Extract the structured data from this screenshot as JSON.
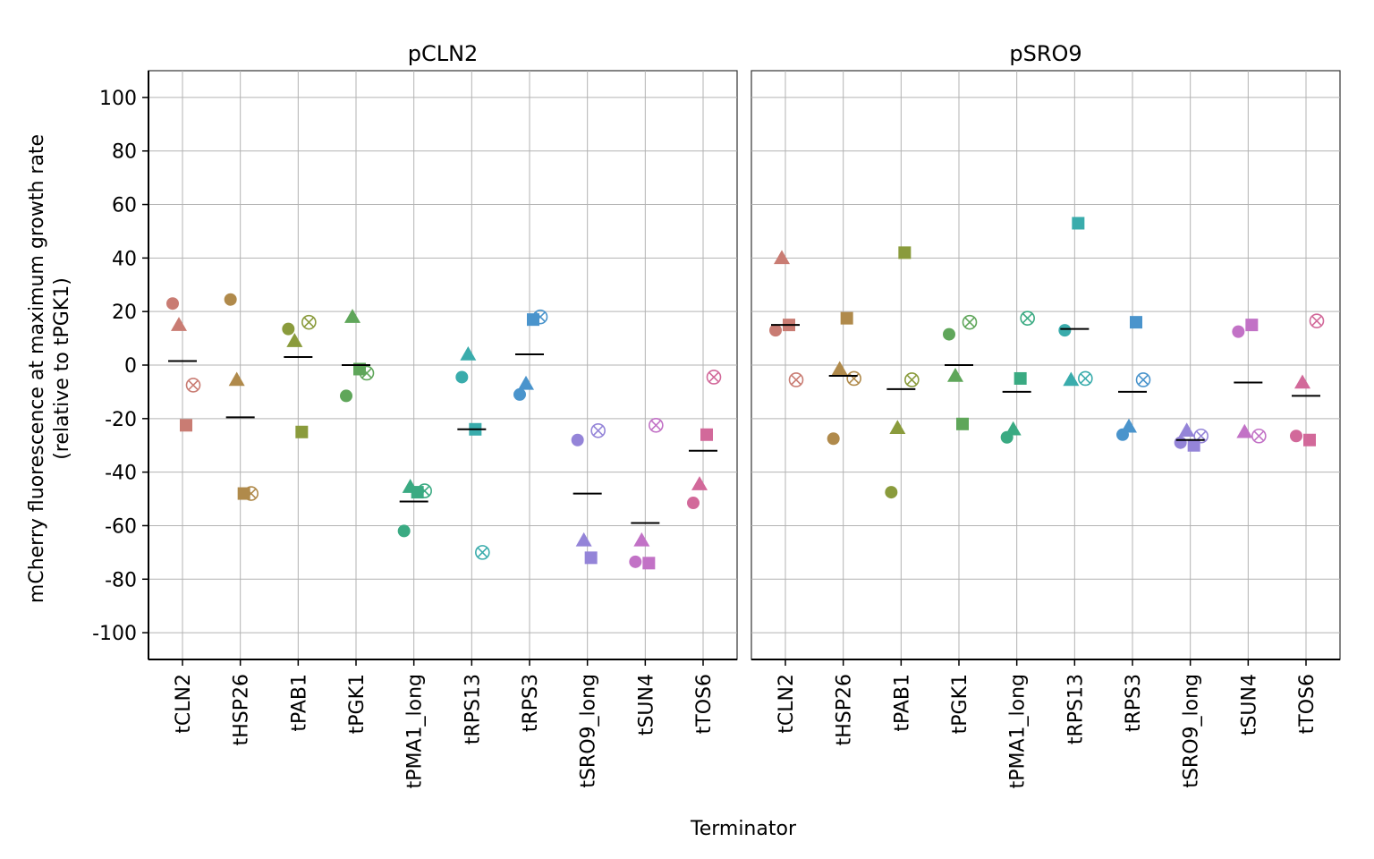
{
  "chart_data": {
    "type": "scatter",
    "xlabel": "Terminator",
    "ylabel_line1": "mCherry fluorescence at maximum growth rate",
    "ylabel_line2": "(relative to tPGK1)",
    "ylim": [
      -110,
      110
    ],
    "yticks": [
      100,
      80,
      60,
      40,
      20,
      0,
      -20,
      -40,
      -60,
      -80,
      -100
    ],
    "grid": true,
    "legend": "none",
    "categories": [
      "tCLN2",
      "tHSP26",
      "tPAB1",
      "tPGK1",
      "tPMA1_long",
      "tRPS13",
      "tRPS3",
      "tSRO9_long",
      "tSUN4",
      "tTOS6"
    ],
    "colors": [
      "#C97C73",
      "#B08A4B",
      "#8A9B3C",
      "#5FA65A",
      "#3AAA82",
      "#3AACAC",
      "#4A94CC",
      "#9484D8",
      "#C272C6",
      "#D2699A"
    ],
    "markers": [
      "circle",
      "triangle",
      "square",
      "circle-x"
    ],
    "panels": [
      {
        "title": "pCLN2",
        "points": [
          {
            "x": "tCLN2",
            "m": "circle",
            "y": 23
          },
          {
            "x": "tCLN2",
            "m": "triangle",
            "y": 15
          },
          {
            "x": "tCLN2",
            "m": "square",
            "y": -22.5
          },
          {
            "x": "tCLN2",
            "m": "circle-x",
            "y": -7.5
          },
          {
            "x": "tHSP26",
            "m": "circle",
            "y": 24.5
          },
          {
            "x": "tHSP26",
            "m": "triangle",
            "y": -5.5
          },
          {
            "x": "tHSP26",
            "m": "square",
            "y": -48
          },
          {
            "x": "tHSP26",
            "m": "circle-x",
            "y": -48
          },
          {
            "x": "tPAB1",
            "m": "circle",
            "y": 13.5
          },
          {
            "x": "tPAB1",
            "m": "triangle",
            "y": 9
          },
          {
            "x": "tPAB1",
            "m": "square",
            "y": -25
          },
          {
            "x": "tPAB1",
            "m": "circle-x",
            "y": 16
          },
          {
            "x": "tPGK1",
            "m": "circle",
            "y": -11.5
          },
          {
            "x": "tPGK1",
            "m": "triangle",
            "y": 18
          },
          {
            "x": "tPGK1",
            "m": "square",
            "y": -1.5
          },
          {
            "x": "tPGK1",
            "m": "circle-x",
            "y": -3
          },
          {
            "x": "tPMA1_long",
            "m": "circle",
            "y": -62
          },
          {
            "x": "tPMA1_long",
            "m": "triangle",
            "y": -45.5
          },
          {
            "x": "tPMA1_long",
            "m": "square",
            "y": -47.5
          },
          {
            "x": "tPMA1_long",
            "m": "circle-x",
            "y": -47
          },
          {
            "x": "tRPS13",
            "m": "circle",
            "y": -4.5
          },
          {
            "x": "tRPS13",
            "m": "triangle",
            "y": 4
          },
          {
            "x": "tRPS13",
            "m": "square",
            "y": -24
          },
          {
            "x": "tRPS13",
            "m": "circle-x",
            "y": -70
          },
          {
            "x": "tRPS3",
            "m": "circle",
            "y": -11
          },
          {
            "x": "tRPS3",
            "m": "triangle",
            "y": -7
          },
          {
            "x": "tRPS3",
            "m": "square",
            "y": 17
          },
          {
            "x": "tRPS3",
            "m": "circle-x",
            "y": 18
          },
          {
            "x": "tSRO9_long",
            "m": "circle",
            "y": -28
          },
          {
            "x": "tSRO9_long",
            "m": "triangle",
            "y": -65.5
          },
          {
            "x": "tSRO9_long",
            "m": "square",
            "y": -72
          },
          {
            "x": "tSRO9_long",
            "m": "circle-x",
            "y": -24.5
          },
          {
            "x": "tSUN4",
            "m": "circle",
            "y": -73.5
          },
          {
            "x": "tSUN4",
            "m": "triangle",
            "y": -65.5
          },
          {
            "x": "tSUN4",
            "m": "square",
            "y": -74
          },
          {
            "x": "tSUN4",
            "m": "circle-x",
            "y": -22.5
          },
          {
            "x": "tTOS6",
            "m": "circle",
            "y": -51.5
          },
          {
            "x": "tTOS6",
            "m": "triangle",
            "y": -44.5
          },
          {
            "x": "tTOS6",
            "m": "square",
            "y": -26
          },
          {
            "x": "tTOS6",
            "m": "circle-x",
            "y": -4.5
          }
        ],
        "means": [
          1.5,
          -19.5,
          3,
          0,
          -51,
          -24,
          4,
          -48,
          -59,
          -32
        ]
      },
      {
        "title": "pSRO9",
        "points": [
          {
            "x": "tCLN2",
            "m": "circle",
            "y": 13
          },
          {
            "x": "tCLN2",
            "m": "triangle",
            "y": 40
          },
          {
            "x": "tCLN2",
            "m": "square",
            "y": 15
          },
          {
            "x": "tCLN2",
            "m": "circle-x",
            "y": -5.5
          },
          {
            "x": "tHSP26",
            "m": "circle",
            "y": -27.5
          },
          {
            "x": "tHSP26",
            "m": "triangle",
            "y": -1.5
          },
          {
            "x": "tHSP26",
            "m": "square",
            "y": 17.5
          },
          {
            "x": "tHSP26",
            "m": "circle-x",
            "y": -5
          },
          {
            "x": "tPAB1",
            "m": "circle",
            "y": -47.5
          },
          {
            "x": "tPAB1",
            "m": "triangle",
            "y": -23.5
          },
          {
            "x": "tPAB1",
            "m": "square",
            "y": 42
          },
          {
            "x": "tPAB1",
            "m": "circle-x",
            "y": -5.5
          },
          {
            "x": "tPGK1",
            "m": "circle",
            "y": 11.5
          },
          {
            "x": "tPGK1",
            "m": "triangle",
            "y": -4
          },
          {
            "x": "tPGK1",
            "m": "square",
            "y": -22
          },
          {
            "x": "tPGK1",
            "m": "circle-x",
            "y": 16
          },
          {
            "x": "tPMA1_long",
            "m": "circle",
            "y": -27
          },
          {
            "x": "tPMA1_long",
            "m": "triangle",
            "y": -24
          },
          {
            "x": "tPMA1_long",
            "m": "square",
            "y": -5
          },
          {
            "x": "tPMA1_long",
            "m": "circle-x",
            "y": 17.5
          },
          {
            "x": "tRPS13",
            "m": "circle",
            "y": 13
          },
          {
            "x": "tRPS13",
            "m": "triangle",
            "y": -5.5
          },
          {
            "x": "tRPS13",
            "m": "square",
            "y": 53
          },
          {
            "x": "tRPS13",
            "m": "circle-x",
            "y": -5
          },
          {
            "x": "tRPS3",
            "m": "circle",
            "y": -26
          },
          {
            "x": "tRPS3",
            "m": "triangle",
            "y": -23
          },
          {
            "x": "tRPS3",
            "m": "square",
            "y": 16
          },
          {
            "x": "tRPS3",
            "m": "circle-x",
            "y": -5.5
          },
          {
            "x": "tSRO9_long",
            "m": "circle",
            "y": -29
          },
          {
            "x": "tSRO9_long",
            "m": "triangle",
            "y": -24.5
          },
          {
            "x": "tSRO9_long",
            "m": "square",
            "y": -30
          },
          {
            "x": "tSRO9_long",
            "m": "circle-x",
            "y": -26.5
          },
          {
            "x": "tSUN4",
            "m": "circle",
            "y": 12.5
          },
          {
            "x": "tSUN4",
            "m": "triangle",
            "y": -25
          },
          {
            "x": "tSUN4",
            "m": "square",
            "y": 15
          },
          {
            "x": "tSUN4",
            "m": "circle-x",
            "y": -26.5
          },
          {
            "x": "tTOS6",
            "m": "circle",
            "y": -26.5
          },
          {
            "x": "tTOS6",
            "m": "triangle",
            "y": -6.5
          },
          {
            "x": "tTOS6",
            "m": "square",
            "y": -28
          },
          {
            "x": "tTOS6",
            "m": "circle-x",
            "y": 16.5
          }
        ],
        "means": [
          15,
          -4,
          -9,
          0,
          -10,
          13.5,
          -10,
          -28,
          -6.5,
          -11.5
        ]
      }
    ]
  }
}
